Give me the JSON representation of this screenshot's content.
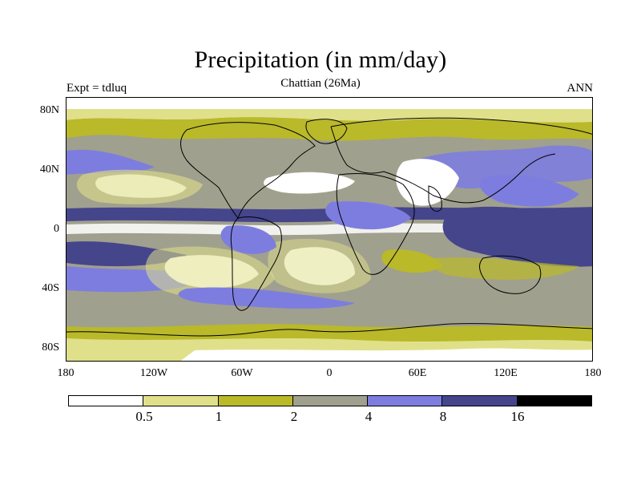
{
  "title": "Precipitation (in mm/day)",
  "subtitle": "Chattian (26Ma)",
  "left_label": "Expt = tdluq",
  "right_label": "ANN",
  "y_ticks": [
    "80N",
    "40N",
    "0",
    "40S",
    "80S"
  ],
  "x_ticks": [
    "180",
    "120W",
    "60W",
    "0",
    "60E",
    "120E",
    "180"
  ],
  "legend": {
    "colors": [
      "#ffffff",
      "#e0e08a",
      "#b9b92a",
      "#a0a08e",
      "#7d7de0",
      "#45458c",
      "#000000"
    ],
    "labels": [
      "0.5",
      "1",
      "2",
      "4",
      "8",
      "16"
    ]
  }
}
